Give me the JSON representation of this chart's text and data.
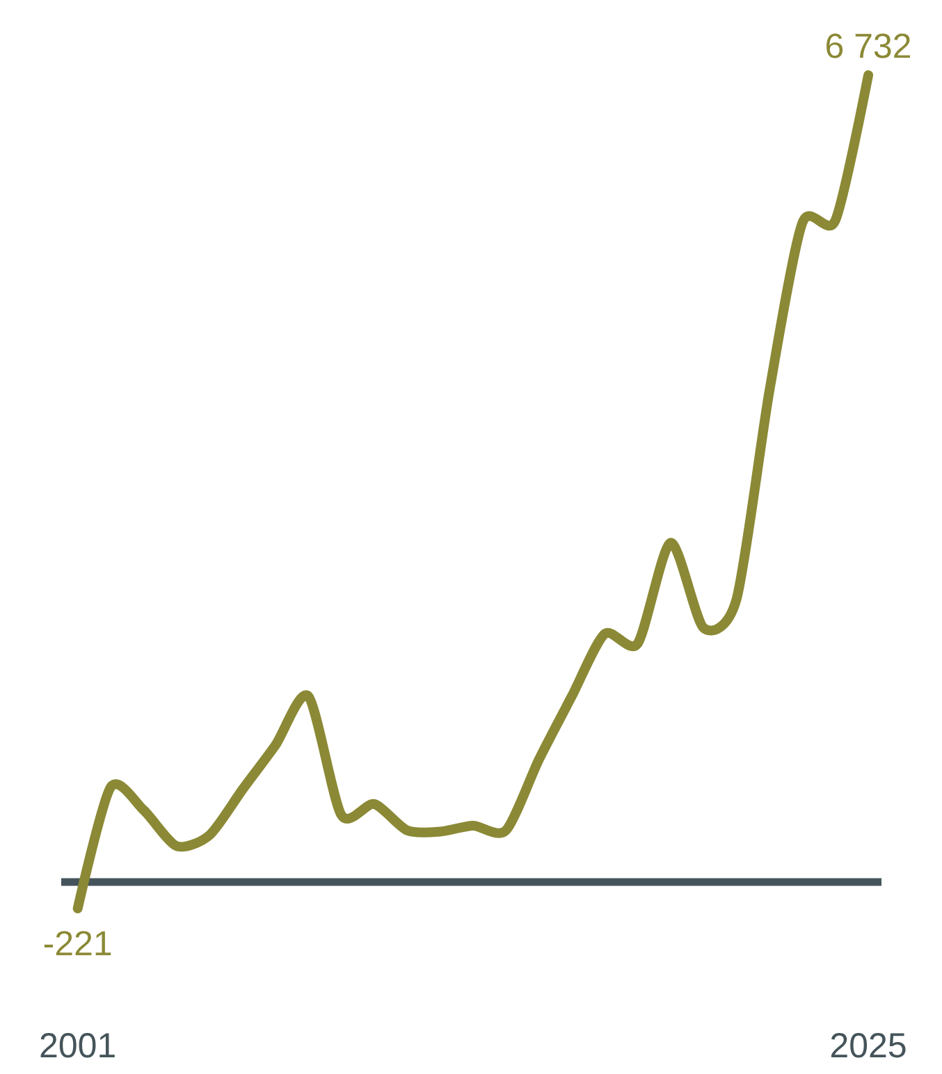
{
  "chart_data": {
    "type": "line",
    "x": [
      2001,
      2002,
      2003,
      2004,
      2005,
      2006,
      2007,
      2008,
      2009,
      2010,
      2011,
      2012,
      2013,
      2014,
      2015,
      2016,
      2017,
      2018,
      2019,
      2020,
      2021,
      2022,
      2023,
      2024,
      2025
    ],
    "series": [
      {
        "color": "#8b8935",
        "values": [
          -221,
          790,
          600,
          300,
          390,
          770,
          1140,
          1550,
          560,
          650,
          430,
          420,
          470,
          430,
          1020,
          1550,
          2070,
          1990,
          2830,
          2120,
          2360,
          4100,
          5500,
          5520,
          6732
        ],
        "value_labels": [
          "-221",
          null,
          null,
          null,
          null,
          null,
          null,
          null,
          null,
          null,
          null,
          null,
          null,
          null,
          null,
          null,
          null,
          null,
          null,
          null,
          null,
          null,
          null,
          null,
          "6 732"
        ]
      }
    ],
    "xlim": [
      2000.5,
      2025.4
    ],
    "xticks": [
      2001,
      2025
    ],
    "tick_labels": "x",
    "ref_lines": [
      {
        "axis": "y",
        "value": 0,
        "color": "#44545a"
      }
    ]
  }
}
